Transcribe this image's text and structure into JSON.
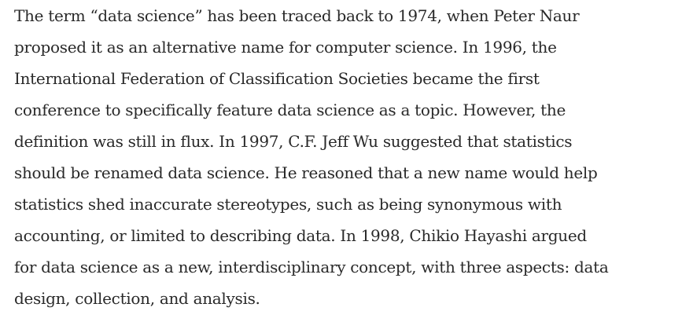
{
  "article": {
    "paragraph_lines": [
      "The term “data science” has been traced back to 1974, when Peter Naur",
      "proposed it as an alternative name for computer science. In 1996, the",
      "International Federation of Classification Societies became the first",
      "conference to specifically feature data science as a topic. However, the",
      "definition was still in flux. In 1997, C.F. Jeff Wu suggested that statistics",
      "should be renamed data science. He reasoned that a new name would help",
      "statistics shed inaccurate stereotypes, such as being synonymous with",
      "accounting, or limited to describing data. In 1998, Chikio Hayashi argued",
      "for data science as a new, interdisciplinary concept, with three aspects: data",
      "design, collection, and analysis."
    ]
  }
}
